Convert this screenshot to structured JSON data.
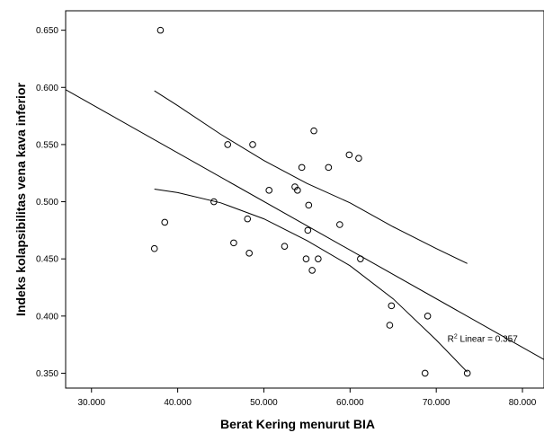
{
  "chart_data": {
    "type": "scatter",
    "xlabel": "Berat Kering menurut BIA",
    "ylabel": "Indeks kolapsibilitas vena kava inferior",
    "xlim": [
      27,
      82.5
    ],
    "ylim": [
      0.337,
      0.667
    ],
    "x_ticks": [
      "30.000",
      "40.000",
      "50.000",
      "60.000",
      "70.000",
      "80.000"
    ],
    "x_tick_values": [
      30,
      40,
      50,
      60,
      70,
      80
    ],
    "y_ticks": [
      "0.350",
      "0.400",
      "0.450",
      "0.500",
      "0.550",
      "0.600",
      "0.650"
    ],
    "y_tick_values": [
      0.35,
      0.4,
      0.45,
      0.5,
      0.55,
      0.6,
      0.65
    ],
    "points": [
      {
        "x": 38.0,
        "y": 0.65
      },
      {
        "x": 45.8,
        "y": 0.55
      },
      {
        "x": 48.7,
        "y": 0.55
      },
      {
        "x": 55.8,
        "y": 0.562
      },
      {
        "x": 59.9,
        "y": 0.541
      },
      {
        "x": 61.0,
        "y": 0.538
      },
      {
        "x": 54.4,
        "y": 0.53
      },
      {
        "x": 57.5,
        "y": 0.53
      },
      {
        "x": 53.6,
        "y": 0.513
      },
      {
        "x": 53.9,
        "y": 0.51
      },
      {
        "x": 50.6,
        "y": 0.51
      },
      {
        "x": 44.2,
        "y": 0.5
      },
      {
        "x": 55.2,
        "y": 0.497
      },
      {
        "x": 48.1,
        "y": 0.485
      },
      {
        "x": 38.5,
        "y": 0.482
      },
      {
        "x": 58.8,
        "y": 0.48
      },
      {
        "x": 55.1,
        "y": 0.475
      },
      {
        "x": 46.5,
        "y": 0.464
      },
      {
        "x": 52.4,
        "y": 0.461
      },
      {
        "x": 37.3,
        "y": 0.459
      },
      {
        "x": 48.3,
        "y": 0.455
      },
      {
        "x": 54.9,
        "y": 0.45
      },
      {
        "x": 56.3,
        "y": 0.45
      },
      {
        "x": 61.2,
        "y": 0.45
      },
      {
        "x": 55.6,
        "y": 0.44
      },
      {
        "x": 64.8,
        "y": 0.409
      },
      {
        "x": 69.0,
        "y": 0.4
      },
      {
        "x": 64.6,
        "y": 0.392
      },
      {
        "x": 68.7,
        "y": 0.35
      },
      {
        "x": 73.6,
        "y": 0.35
      }
    ],
    "fit_line": {
      "x": [
        27,
        82.5
      ],
      "y": [
        0.598,
        0.362
      ]
    },
    "ci_upper": {
      "x": [
        37.3,
        40,
        45,
        50,
        55,
        60,
        65,
        70,
        73.6
      ],
      "y": [
        0.597,
        0.584,
        0.559,
        0.536,
        0.516,
        0.499,
        0.478,
        0.459,
        0.446
      ]
    },
    "ci_lower": {
      "x": [
        37.3,
        40,
        45,
        50,
        55,
        60,
        65,
        70,
        73.6
      ],
      "y": [
        0.511,
        0.508,
        0.499,
        0.485,
        0.466,
        0.444,
        0.415,
        0.379,
        0.351
      ]
    },
    "annotation": {
      "prefix": "R",
      "sup": "2",
      "suffix": " Linear = 0.357",
      "x": 71.3,
      "y": 0.38
    },
    "grid": false,
    "legend": "none",
    "marker": "open-circle",
    "colors": {
      "marker": "#000000",
      "line": "#000000",
      "background": "#ffffff"
    }
  }
}
